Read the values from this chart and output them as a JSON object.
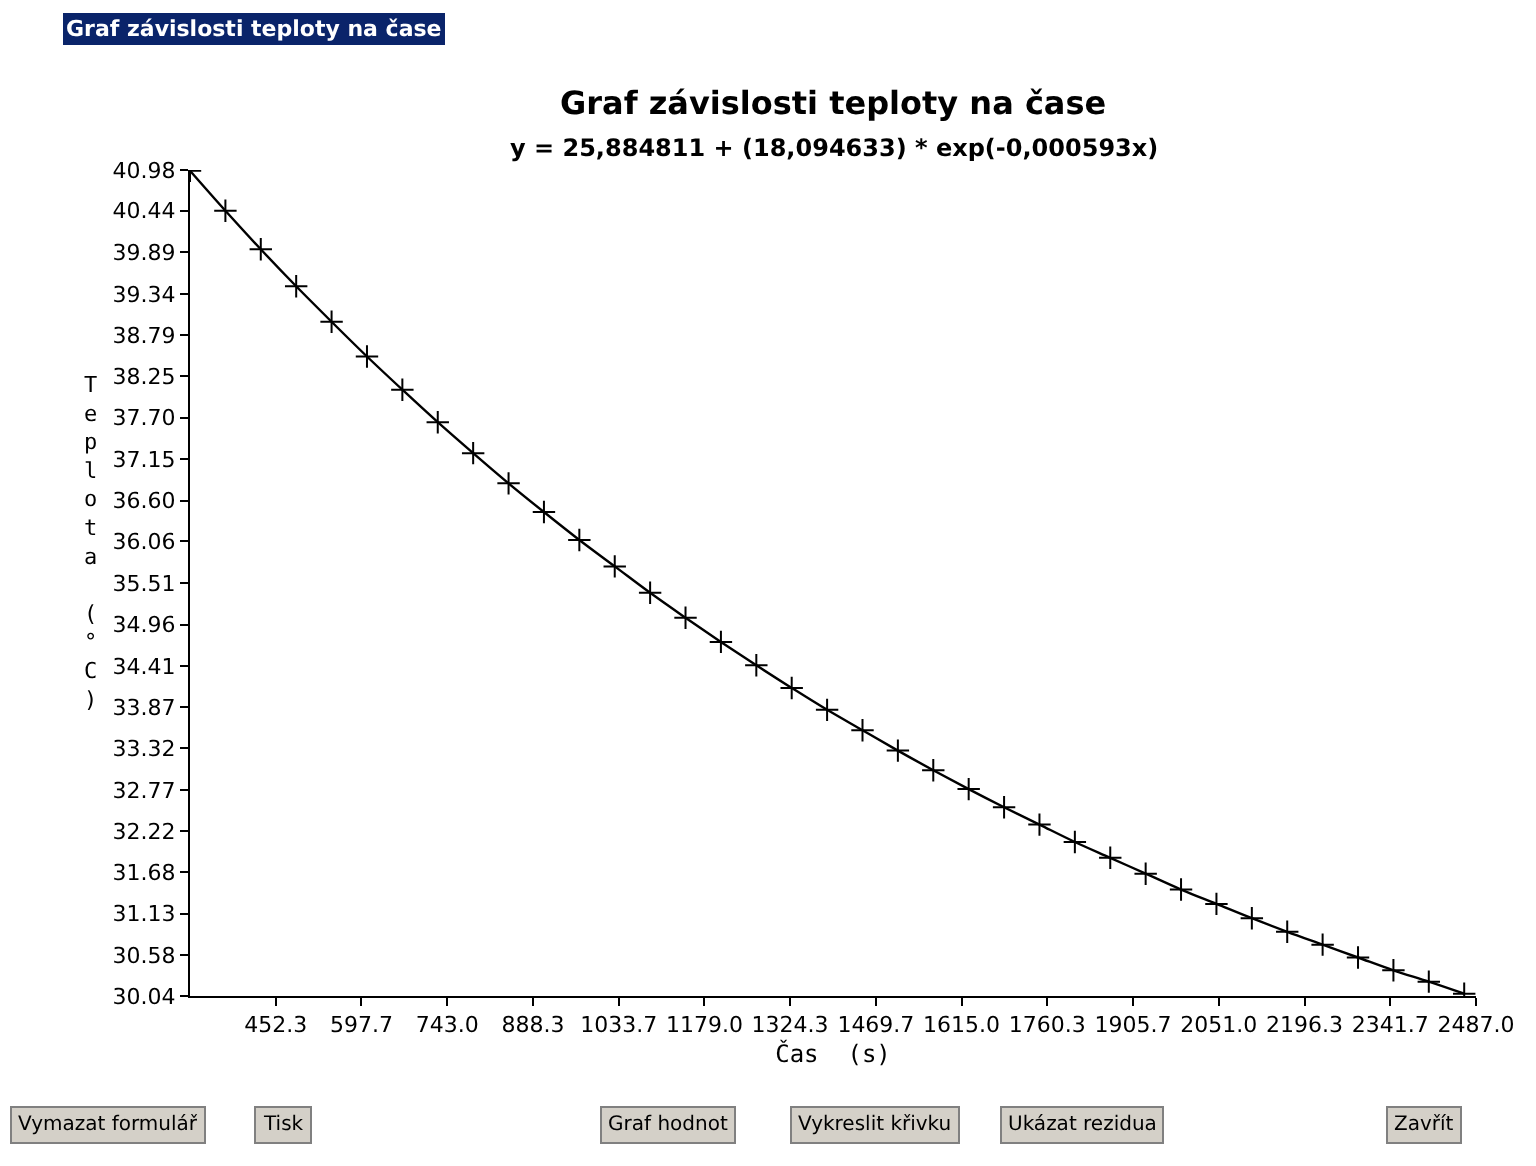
{
  "chart_data": {
    "type": "scatter",
    "title": "Graf závislosti teploty na čase",
    "subtitle": "y = 25,884811 + (18,094633) * exp(-0,000593x)",
    "xlabel": "Čas  (s)",
    "ylabel": "Teplota (°C)",
    "x": [
      307,
      367,
      427,
      487,
      547,
      607,
      667,
      727,
      787,
      847,
      907,
      967,
      1027,
      1087,
      1147,
      1207,
      1267,
      1327,
      1387,
      1447,
      1507,
      1567,
      1627,
      1687,
      1747,
      1807,
      1867,
      1927,
      1987,
      2047,
      2107,
      2167,
      2227,
      2287,
      2347,
      2407,
      2467
    ],
    "series": [
      {
        "marker": "cross",
        "color": "#000000",
        "values": [
          40.97,
          40.44,
          39.93,
          39.44,
          38.97,
          38.51,
          38.07,
          37.64,
          37.23,
          36.83,
          36.45,
          36.08,
          35.73,
          35.38,
          35.05,
          34.73,
          34.42,
          34.12,
          33.83,
          33.56,
          33.29,
          33.03,
          32.78,
          32.54,
          32.31,
          32.08,
          31.87,
          31.66,
          31.45,
          31.26,
          31.07,
          30.89,
          30.72,
          30.55,
          30.38,
          30.23,
          30.07
        ]
      },
      {
        "type": "line",
        "color": "#000000",
        "values": [
          40.97,
          40.44,
          39.93,
          39.44,
          38.97,
          38.51,
          38.07,
          37.64,
          37.23,
          36.83,
          36.45,
          36.08,
          35.73,
          35.38,
          35.05,
          34.73,
          34.42,
          34.12,
          33.83,
          33.56,
          33.29,
          33.03,
          32.78,
          32.54,
          32.31,
          32.08,
          31.87,
          31.66,
          31.45,
          31.26,
          31.07,
          30.89,
          30.72,
          30.55,
          30.38,
          30.23,
          30.07
        ]
      }
    ],
    "xlim": [
      307,
      2487
    ],
    "xticks": [
      452.3,
      597.7,
      {
        "value": 743,
        "label": "743.0"
      },
      888.3,
      1033.7,
      {
        "value": 1179,
        "label": "1179.0"
      },
      1324.3,
      1469.7,
      {
        "value": 1615,
        "label": "1615.0"
      },
      1760.3,
      1905.7,
      {
        "value": 2051,
        "label": "2051.0"
      },
      2196.3,
      2341.7,
      {
        "value": 2487,
        "label": "2487.0"
      }
    ],
    "ylim": [
      30.04,
      40.98
    ],
    "yticks": [
      30.04,
      30.58,
      31.13,
      31.68,
      32.22,
      32.77,
      33.32,
      33.87,
      34.41,
      34.96,
      35.51,
      36.06,
      {
        "value": 36.6,
        "label": "36.60"
      },
      37.15,
      {
        "value": 37.7,
        "label": "37.70"
      },
      38.25,
      38.79,
      39.34,
      39.89,
      40.44,
      40.98
    ],
    "grid": false,
    "annotations": [
      "Graf závislosti teploty na čase",
      "Vymazat formulář",
      "Tisk",
      "Graf hodnot",
      "Vykreslit křivku",
      "Ukázat rezidua",
      "Zavřít"
    ]
  }
}
